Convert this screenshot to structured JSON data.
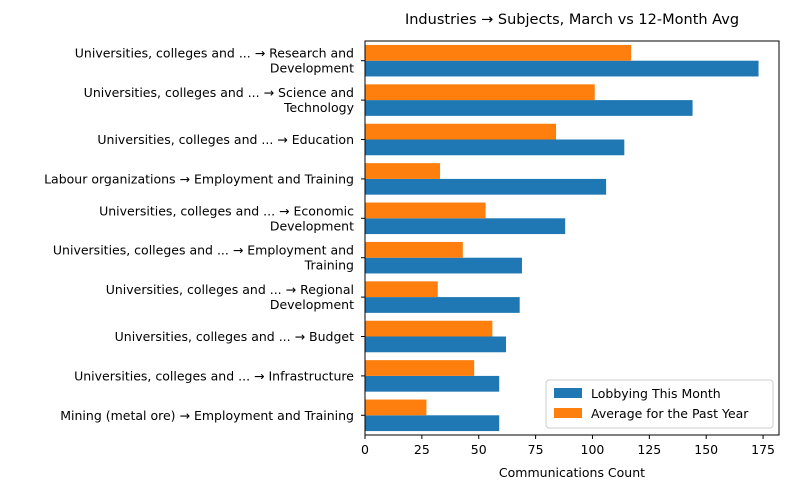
{
  "chart_data": {
    "type": "bar",
    "orientation": "horizontal",
    "title": "Industries → Subjects, March vs 12-Month Avg",
    "xlabel": "Communications Count",
    "ylabel": "",
    "xlim": [
      0,
      182
    ],
    "xticks": [
      0,
      25,
      50,
      75,
      100,
      125,
      150,
      175
    ],
    "grid": false,
    "legend_position": "lower right",
    "categories": [
      [
        "Universities, colleges and ... → Research and",
        "Development"
      ],
      [
        "Universities, colleges and ... → Science and",
        "Technology"
      ],
      [
        "Universities, colleges and ... → Education"
      ],
      [
        "Labour organizations → Employment and Training"
      ],
      [
        "Universities, colleges and ... → Economic",
        "Development"
      ],
      [
        "Universities, colleges and ... → Employment and",
        "Training"
      ],
      [
        "Universities, colleges and ... → Regional",
        "Development"
      ],
      [
        "Universities, colleges and ... → Budget"
      ],
      [
        "Universities, colleges and ... → Infrastructure"
      ],
      [
        "Mining (metal ore) → Employment and Training"
      ]
    ],
    "series": [
      {
        "name": "Lobbying This Month",
        "color": "#1f77b4",
        "values": [
          173,
          144,
          114,
          106,
          88,
          69,
          68,
          62,
          59,
          59
        ]
      },
      {
        "name": "Average for the Past Year",
        "color": "#ff7f0e",
        "values": [
          117,
          101,
          84,
          33,
          53,
          43,
          32,
          56,
          48,
          27
        ]
      }
    ]
  }
}
